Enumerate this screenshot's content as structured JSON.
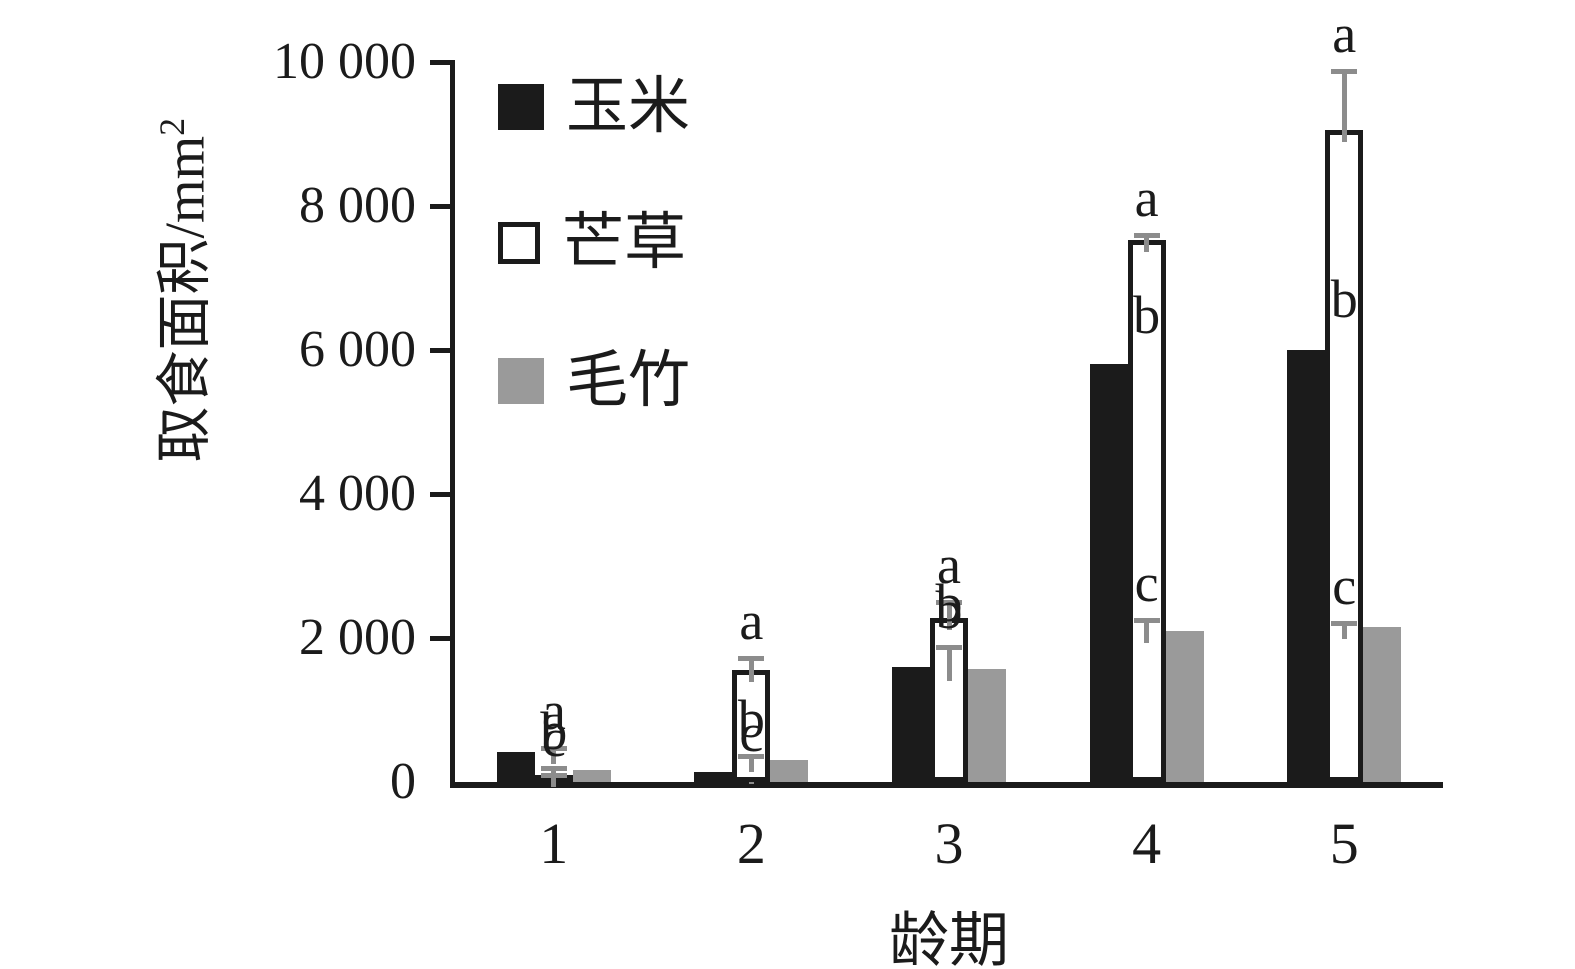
{
  "figure": {
    "background": "#ffffff",
    "text_color": "#1b1b1b"
  },
  "chart_data": {
    "type": "bar",
    "title": "",
    "xlabel": "龄期",
    "ylabel_base": "取食面积/mm",
    "ylabel_superscript": "2",
    "ylim": [
      0,
      10000
    ],
    "grid": false,
    "legend_position": "inside-top-left",
    "error_bar_color": "#8c8c8c",
    "axis_color": "#1b1b1b",
    "y_ticks": [
      {
        "value": 0,
        "label": "0"
      },
      {
        "value": 2000,
        "label": "2 000"
      },
      {
        "value": 4000,
        "label": "4 000"
      },
      {
        "value": 6000,
        "label": "6 000"
      },
      {
        "value": 8000,
        "label": "8 000"
      },
      {
        "value": 10000,
        "label": "10 000"
      }
    ],
    "categories": [
      "1",
      "2",
      "3",
      "4",
      "5"
    ],
    "series": [
      {
        "name": "玉米",
        "fill": "#1b1b1b",
        "stroke": "#1b1b1b",
        "values": [
          420,
          140,
          1600,
          5800,
          6000
        ],
        "errors": [
          80,
          60,
          400,
          200,
          220
        ],
        "sig_letters": [
          "a",
          "c",
          "b",
          "b",
          "b"
        ]
      },
      {
        "name": "芒草",
        "fill": "#ffffff",
        "stroke": "#1b1b1b",
        "values": [
          100,
          1550,
          2280,
          7530,
          9050
        ],
        "errors": [
          30,
          200,
          250,
          100,
          850
        ],
        "sig_letters": [
          "c",
          "a",
          "a",
          "a",
          "a"
        ]
      },
      {
        "name": "毛竹",
        "fill": "#9a9a9a",
        "stroke": "#9a9a9a",
        "values": [
          160,
          300,
          1570,
          2100,
          2150
        ],
        "errors": [
          60,
          90,
          330,
          180,
          80
        ],
        "sig_letters": [
          "b",
          "b",
          "b",
          "c",
          "c"
        ]
      }
    ]
  }
}
